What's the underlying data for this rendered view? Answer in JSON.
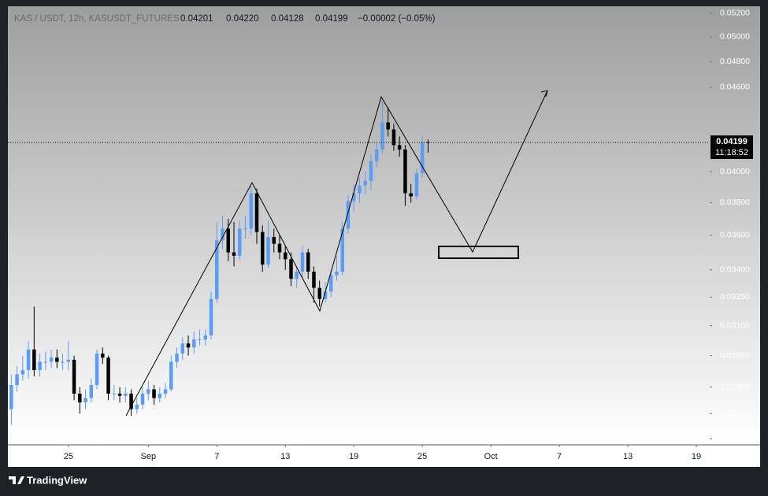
{
  "chart_data": {
    "type": "candlestick",
    "title": "KAS / USDT, 12h, KASUSDT_FUTURES",
    "log_scale": true,
    "up_color": "#5b9cf6",
    "down_color": "#000000",
    "x": [
      20,
      20.5,
      21,
      21.5,
      22,
      22.5,
      23,
      23.5,
      24,
      24.5,
      25,
      25.5,
      26,
      26.5,
      27,
      27.5,
      28,
      28.5,
      29,
      29.5,
      30,
      30.5,
      31,
      31.5,
      32,
      32.5,
      33,
      33.5,
      34,
      34.5,
      35,
      35.5,
      36,
      36.5,
      37,
      37.5,
      38,
      38.5,
      39,
      39.5,
      40,
      40.5,
      41,
      41.5,
      42,
      42.5,
      43,
      43.5,
      44,
      44.5,
      45,
      45.5,
      46,
      46.5,
      47,
      47.5,
      48,
      48.5,
      49,
      49.5,
      50,
      50.5,
      51,
      51.5,
      52,
      52.5,
      53,
      53.5,
      54,
      54.5,
      55,
      55.5,
      56,
      56.5
    ],
    "open": [
      0.027,
      0.0281,
      0.0286,
      0.0288,
      0.0298,
      0.0288,
      0.0292,
      0.0292,
      0.0294,
      0.0292,
      0.0292,
      0.0293,
      0.0277,
      0.0273,
      0.0275,
      0.0281,
      0.0296,
      0.0294,
      0.0277,
      0.0277,
      0.0276,
      0.0277,
      0.027,
      0.0272,
      0.0277,
      0.0279,
      0.0275,
      0.0277,
      0.0279,
      0.0292,
      0.0296,
      0.0301,
      0.0299,
      0.0303,
      0.0303,
      0.0305,
      0.0324,
      0.0357,
      0.0364,
      0.035,
      0.0348,
      0.0364,
      0.0364,
      0.0386,
      0.0362,
      0.0343,
      0.0359,
      0.0355,
      0.035,
      0.0346,
      0.0335,
      0.0339,
      0.035,
      0.0339,
      0.033,
      0.0324,
      0.0328,
      0.0337,
      0.0339,
      0.0364,
      0.0381,
      0.0386,
      0.0391,
      0.0394,
      0.0407,
      0.0415,
      0.0434,
      0.0429,
      0.0418,
      0.0415,
      0.0386,
      0.0384,
      0.0399,
      0.04201
    ],
    "high": [
      0.0286,
      0.029,
      0.0295,
      0.0302,
      0.032,
      0.0296,
      0.0297,
      0.0298,
      0.0298,
      0.0296,
      0.0302,
      0.0295,
      0.028,
      0.0279,
      0.0284,
      0.0298,
      0.0299,
      0.0295,
      0.0281,
      0.028,
      0.028,
      0.0279,
      0.0275,
      0.028,
      0.0283,
      0.0281,
      0.028,
      0.0282,
      0.0295,
      0.0299,
      0.0304,
      0.0305,
      0.0307,
      0.0308,
      0.0308,
      0.0328,
      0.0368,
      0.0372,
      0.037,
      0.0368,
      0.0369,
      0.0372,
      0.0391,
      0.0389,
      0.0366,
      0.0369,
      0.0364,
      0.036,
      0.0354,
      0.035,
      0.0342,
      0.0354,
      0.0352,
      0.0342,
      0.0334,
      0.0333,
      0.034,
      0.0348,
      0.0368,
      0.0385,
      0.0392,
      0.0396,
      0.04,
      0.0412,
      0.042,
      0.045,
      0.0445,
      0.0433,
      0.0424,
      0.0418,
      0.0392,
      0.0402,
      0.0424,
      0.0422
    ],
    "low": [
      0.0263,
      0.0278,
      0.0283,
      0.0284,
      0.0285,
      0.0285,
      0.0288,
      0.0289,
      0.0289,
      0.0288,
      0.0288,
      0.0274,
      0.0268,
      0.027,
      0.0273,
      0.0279,
      0.0291,
      0.0274,
      0.0274,
      0.0273,
      0.0273,
      0.0267,
      0.0268,
      0.027,
      0.0274,
      0.0272,
      0.0273,
      0.0275,
      0.0278,
      0.0289,
      0.0293,
      0.0295,
      0.0296,
      0.03,
      0.03,
      0.0303,
      0.0322,
      0.0352,
      0.0345,
      0.0342,
      0.0346,
      0.0358,
      0.036,
      0.0355,
      0.0339,
      0.0341,
      0.035,
      0.0346,
      0.034,
      0.0331,
      0.033,
      0.0336,
      0.0335,
      0.0322,
      0.032,
      0.0322,
      0.0325,
      0.0334,
      0.0337,
      0.0361,
      0.0375,
      0.038,
      0.0385,
      0.0388,
      0.0403,
      0.0412,
      0.0424,
      0.0414,
      0.041,
      0.0378,
      0.038,
      0.0382,
      0.0396,
      0.04128
    ],
    "close": [
      0.0281,
      0.0286,
      0.0288,
      0.0298,
      0.0288,
      0.0292,
      0.0292,
      0.0294,
      0.0292,
      0.0292,
      0.0293,
      0.0277,
      0.0273,
      0.0275,
      0.0281,
      0.0296,
      0.0294,
      0.0277,
      0.0277,
      0.0276,
      0.0277,
      0.027,
      0.0272,
      0.0277,
      0.0279,
      0.0275,
      0.0277,
      0.0279,
      0.0292,
      0.0296,
      0.0301,
      0.0299,
      0.0303,
      0.0303,
      0.0305,
      0.0324,
      0.0357,
      0.0364,
      0.035,
      0.0348,
      0.0364,
      0.0364,
      0.0386,
      0.0362,
      0.0343,
      0.0359,
      0.0355,
      0.035,
      0.0346,
      0.0335,
      0.0339,
      0.035,
      0.0339,
      0.033,
      0.0324,
      0.0328,
      0.0337,
      0.0339,
      0.0364,
      0.0381,
      0.0386,
      0.0391,
      0.0394,
      0.0407,
      0.0415,
      0.0434,
      0.0429,
      0.0418,
      0.0415,
      0.0386,
      0.0384,
      0.0399,
      0.042,
      0.04199
    ],
    "ylim": [
      0.02545,
      0.0526
    ],
    "yticks": [
      {
        "value": 0.0257,
        "label": "0.02570"
      },
      {
        "value": 0.0268,
        "label": "0.02680"
      },
      {
        "value": 0.028,
        "label": "0.02800"
      },
      {
        "value": 0.0295,
        "label": "0.02950"
      },
      {
        "value": 0.031,
        "label": "0.03100"
      },
      {
        "value": 0.0325,
        "label": "0.03250"
      },
      {
        "value": 0.034,
        "label": "0.03400"
      },
      {
        "value": 0.036,
        "label": "0.03600"
      },
      {
        "value": 0.038,
        "label": "0.03800"
      },
      {
        "value": 0.04,
        "label": "0.04000"
      },
      {
        "value": 0.046,
        "label": "0.04600"
      },
      {
        "value": 0.048,
        "label": "0.04800"
      },
      {
        "value": 0.05,
        "label": "0.05000"
      },
      {
        "value": 0.052,
        "label": "0.05200"
      }
    ],
    "xlim": [
      19.7,
      81.1
    ],
    "xticks": [
      {
        "value": 25,
        "label": "25"
      },
      {
        "value": 32,
        "label": "Sep"
      },
      {
        "value": 38,
        "label": "7"
      },
      {
        "value": 44,
        "label": "13"
      },
      {
        "value": 50,
        "label": "19"
      },
      {
        "value": 56,
        "label": "25"
      },
      {
        "value": 62,
        "label": "Oct"
      },
      {
        "value": 68,
        "label": "7"
      },
      {
        "value": 74,
        "label": "13"
      },
      {
        "value": 80,
        "label": "19"
      }
    ]
  },
  "header": {
    "open": "0.04201",
    "high": "0.04220",
    "low": "0.04128",
    "close": "0.04199",
    "change": "−0.00002 (−0.05%)"
  },
  "price_label": {
    "price": "0.04199",
    "countdown": "11:18:52"
  },
  "footer": {
    "logo": "TradingView"
  }
}
